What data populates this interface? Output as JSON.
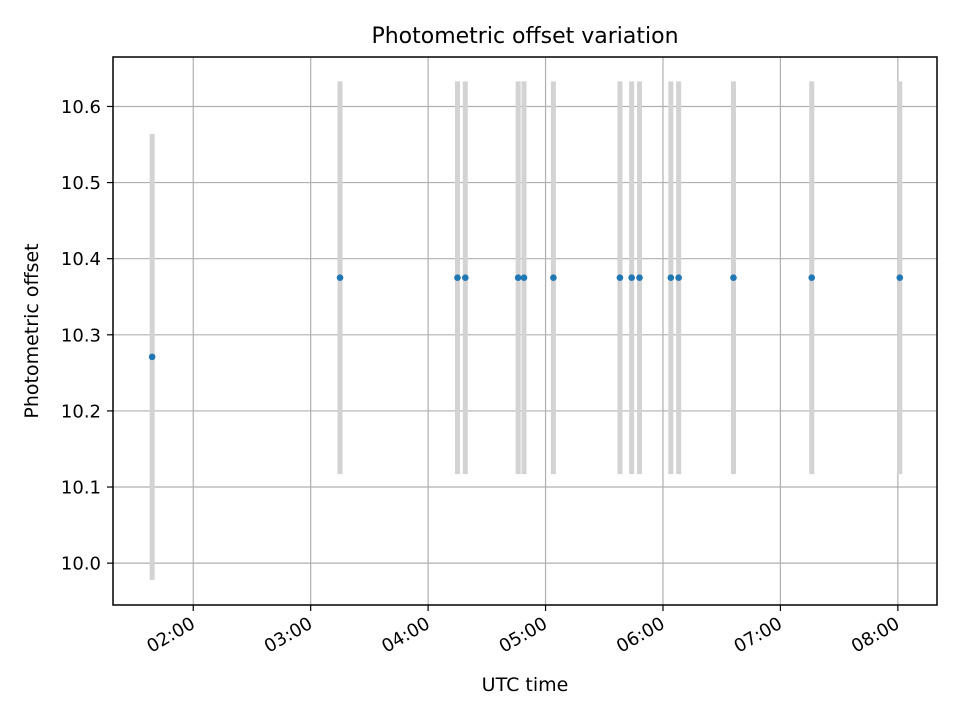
{
  "chart_data": {
    "type": "scatter",
    "title": "Photometric offset variation",
    "xlabel": "UTC time",
    "ylabel": "Photometric offset",
    "grid": true,
    "x_is_time": true,
    "xlim": [
      "01:19",
      "08:20"
    ],
    "ylim": [
      9.945,
      10.665
    ],
    "x_ticks": [
      "02:00",
      "03:00",
      "04:00",
      "05:00",
      "06:00",
      "07:00",
      "08:00"
    ],
    "y_ticks": [
      10.0,
      10.1,
      10.2,
      10.3,
      10.4,
      10.5,
      10.6
    ],
    "y_tick_labels": [
      "10.0",
      "10.1",
      "10.2",
      "10.3",
      "10.4",
      "10.5",
      "10.6"
    ],
    "series": [
      {
        "marker_color": "#1f77b4",
        "errorbar_color": "#d3d3d3",
        "points": [
          {
            "x": "01:39",
            "y": 10.271,
            "err": 0.293
          },
          {
            "x": "03:15",
            "y": 10.375,
            "err": 0.258
          },
          {
            "x": "04:15",
            "y": 10.375,
            "err": 0.258
          },
          {
            "x": "04:19",
            "y": 10.375,
            "err": 0.258
          },
          {
            "x": "04:46",
            "y": 10.375,
            "err": 0.258
          },
          {
            "x": "04:49",
            "y": 10.375,
            "err": 0.258
          },
          {
            "x": "05:04",
            "y": 10.375,
            "err": 0.258
          },
          {
            "x": "05:38",
            "y": 10.375,
            "err": 0.258
          },
          {
            "x": "05:44",
            "y": 10.375,
            "err": 0.258
          },
          {
            "x": "05:48",
            "y": 10.375,
            "err": 0.258
          },
          {
            "x": "06:04",
            "y": 10.375,
            "err": 0.258
          },
          {
            "x": "06:08",
            "y": 10.375,
            "err": 0.258
          },
          {
            "x": "06:36",
            "y": 10.375,
            "err": 0.258
          },
          {
            "x": "07:16",
            "y": 10.375,
            "err": 0.258
          },
          {
            "x": "08:01",
            "y": 10.375,
            "err": 0.258
          }
        ]
      }
    ]
  }
}
